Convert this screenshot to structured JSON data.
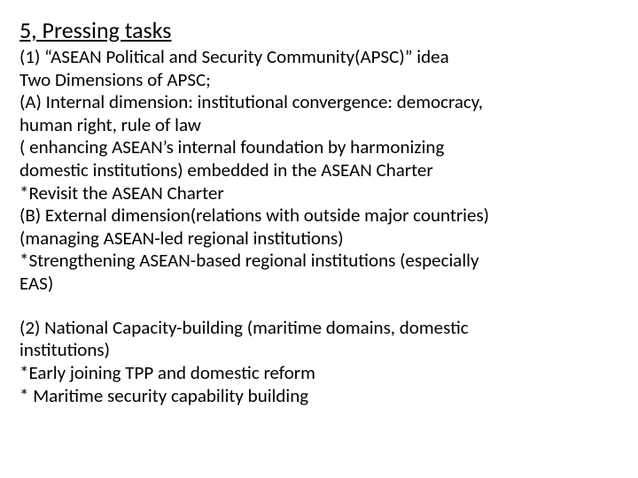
{
  "title": "5, Pressing tasks",
  "lines": [
    "(1)  “ASEAN Political and Security Community(APSC)” idea",
    "Two Dimensions of APSC;",
    "(A) Internal dimension: institutional convergence: democracy,",
    "human right, rule of law",
    "    ( enhancing ASEAN’s internal foundation by harmonizing",
    "domestic institutions) embedded in the ASEAN Charter",
    "*Revisit the ASEAN Charter",
    "(B) External dimension(relations with outside major countries)",
    "     (managing ASEAN-led regional institutions)",
    "*Strengthening ASEAN-based regional institutions (especially",
    "EAS)"
  ],
  "lines2": [
    "(2) National Capacity-building (maritime domains, domestic",
    "institutions)",
    "   *Early joining TPP  and domestic reform",
    "   * Maritime security capability building"
  ],
  "colors": {
    "background": "#ffffff",
    "text": "#000000"
  },
  "typography": {
    "title_fontsize": 26,
    "body_fontsize": 21,
    "font_family": "Calibri"
  }
}
